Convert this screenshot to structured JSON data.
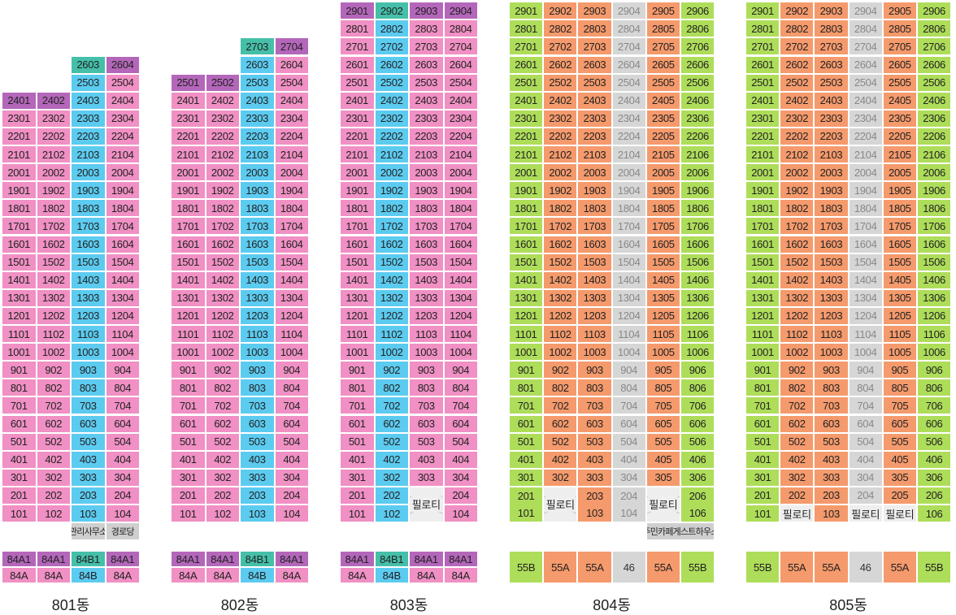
{
  "colors": {
    "pink": "#f090c4",
    "cyan": "#5ccbf0",
    "purple": "#b467ba",
    "teal": "#45bfa9",
    "green": "#aedd5a",
    "orange": "#f59a6c",
    "gray": "#d6d6d6",
    "gray_text": "#888888",
    "piloti": "#eeeeee",
    "amenity": "#cfcfcf",
    "border": "#ffffff"
  },
  "buildings": [
    {
      "name": "801동",
      "top_floor": 26,
      "columns": [
        {
          "unit": "01",
          "top": 24,
          "color": "pink",
          "type_top": "84A1",
          "type_bottom": "84A",
          "type_color": "pink"
        },
        {
          "unit": "02",
          "top": 24,
          "color": "pink",
          "type_top": "84A1",
          "type_bottom": "84A",
          "type_color": "pink"
        },
        {
          "unit": "03",
          "top": 26,
          "color": "cyan",
          "type_top": "84B1",
          "type_bottom": "84B",
          "type_color": "cyan"
        },
        {
          "unit": "04",
          "top": 26,
          "color": "pink",
          "type_top": "84A1",
          "type_bottom": "84A",
          "type_color": "pink"
        }
      ],
      "top_colors": {
        "2401": "purple",
        "2402": "purple",
        "2603": "teal",
        "2604": "purple"
      },
      "specials": [],
      "amenities": [
        {
          "col": 2,
          "span": 1,
          "label": "관리사무소"
        },
        {
          "col": 3,
          "span": 1,
          "label": "경로당"
        }
      ]
    },
    {
      "name": "802동",
      "top_floor": 27,
      "columns": [
        {
          "unit": "01",
          "top": 25,
          "color": "pink",
          "type_top": "84A1",
          "type_bottom": "84A",
          "type_color": "pink"
        },
        {
          "unit": "02",
          "top": 25,
          "color": "pink",
          "type_top": "84A1",
          "type_bottom": "84A",
          "type_color": "pink"
        },
        {
          "unit": "03",
          "top": 27,
          "color": "cyan",
          "type_top": "84B1",
          "type_bottom": "84B",
          "type_color": "cyan"
        },
        {
          "unit": "04",
          "top": 27,
          "color": "pink",
          "type_top": "84A1",
          "type_bottom": "84A",
          "type_color": "pink"
        }
      ],
      "top_colors": {
        "2501": "purple",
        "2502": "purple",
        "2703": "teal",
        "2704": "purple"
      },
      "specials": [],
      "amenities": []
    },
    {
      "name": "803동",
      "top_floor": 29,
      "columns": [
        {
          "unit": "01",
          "top": 29,
          "color": "pink",
          "type_top": "84A1",
          "type_bottom": "84A",
          "type_color": "pink"
        },
        {
          "unit": "02",
          "top": 29,
          "color": "cyan",
          "type_top": "84B1",
          "type_bottom": "84B",
          "type_color": "cyan"
        },
        {
          "unit": "03",
          "top": 29,
          "color": "pink",
          "type_top": "84A1",
          "type_bottom": "84A",
          "type_color": "pink"
        },
        {
          "unit": "04",
          "top": 29,
          "color": "pink",
          "type_top": "84A1",
          "type_bottom": "84A",
          "type_color": "pink"
        }
      ],
      "top_colors": {
        "2901": "purple",
        "2902": "teal",
        "2903": "purple",
        "2904": "purple"
      },
      "specials": [
        {
          "col": 2,
          "floor_top": 2,
          "span_floors": 2,
          "label": "필로티"
        }
      ],
      "amenities": []
    },
    {
      "name": "804동",
      "top_floor": 29,
      "columns": [
        {
          "unit": "01",
          "top": 29,
          "color": "green",
          "type": "55B",
          "type_color": "green"
        },
        {
          "unit": "02",
          "top": 29,
          "color": "orange",
          "type": "55A",
          "type_color": "orange"
        },
        {
          "unit": "03",
          "top": 29,
          "color": "orange",
          "type": "55A",
          "type_color": "orange"
        },
        {
          "unit": "04",
          "top": 29,
          "color": "gray",
          "type": "46",
          "type_color": "gray"
        },
        {
          "unit": "05",
          "top": 29,
          "color": "orange",
          "type": "55A",
          "type_color": "orange"
        },
        {
          "unit": "06",
          "top": 29,
          "color": "green",
          "type": "55B",
          "type_color": "green"
        }
      ],
      "top_colors": {},
      "specials": [
        {
          "col": 1,
          "floor_top": 2,
          "span_floors": 2,
          "label": "필로티"
        },
        {
          "col": 4,
          "floor_top": 2,
          "span_floors": 2,
          "label": "필로티"
        }
      ],
      "amenities": [
        {
          "col": 4,
          "span": 2,
          "label": "주민카페게스트하우스"
        }
      ],
      "merged_rows": [
        {
          "col": 0,
          "floor_top": 2,
          "labels": [
            "201",
            "101"
          ]
        },
        {
          "col": 2,
          "floor_top": 2,
          "labels": [
            "203",
            "103"
          ]
        },
        {
          "col": 3,
          "floor_top": 2,
          "labels": [
            "204",
            "104"
          ]
        },
        {
          "col": 5,
          "floor_top": 2,
          "labels": [
            "206",
            "106"
          ]
        }
      ]
    },
    {
      "name": "805동",
      "top_floor": 29,
      "columns": [
        {
          "unit": "01",
          "top": 29,
          "color": "green",
          "type": "55B",
          "type_color": "green"
        },
        {
          "unit": "02",
          "top": 29,
          "color": "orange",
          "type": "55A",
          "type_color": "orange"
        },
        {
          "unit": "03",
          "top": 29,
          "color": "orange",
          "type": "55A",
          "type_color": "orange"
        },
        {
          "unit": "04",
          "top": 29,
          "color": "gray",
          "type": "46",
          "type_color": "gray"
        },
        {
          "unit": "05",
          "top": 29,
          "color": "orange",
          "type": "55A",
          "type_color": "orange"
        },
        {
          "unit": "06",
          "top": 29,
          "color": "green",
          "type": "55B",
          "type_color": "green"
        }
      ],
      "top_colors": {},
      "specials": [],
      "floor1_labels": [
        "101",
        "필로티",
        "103",
        "필로티",
        "필로티",
        "106"
      ],
      "amenities": []
    }
  ]
}
